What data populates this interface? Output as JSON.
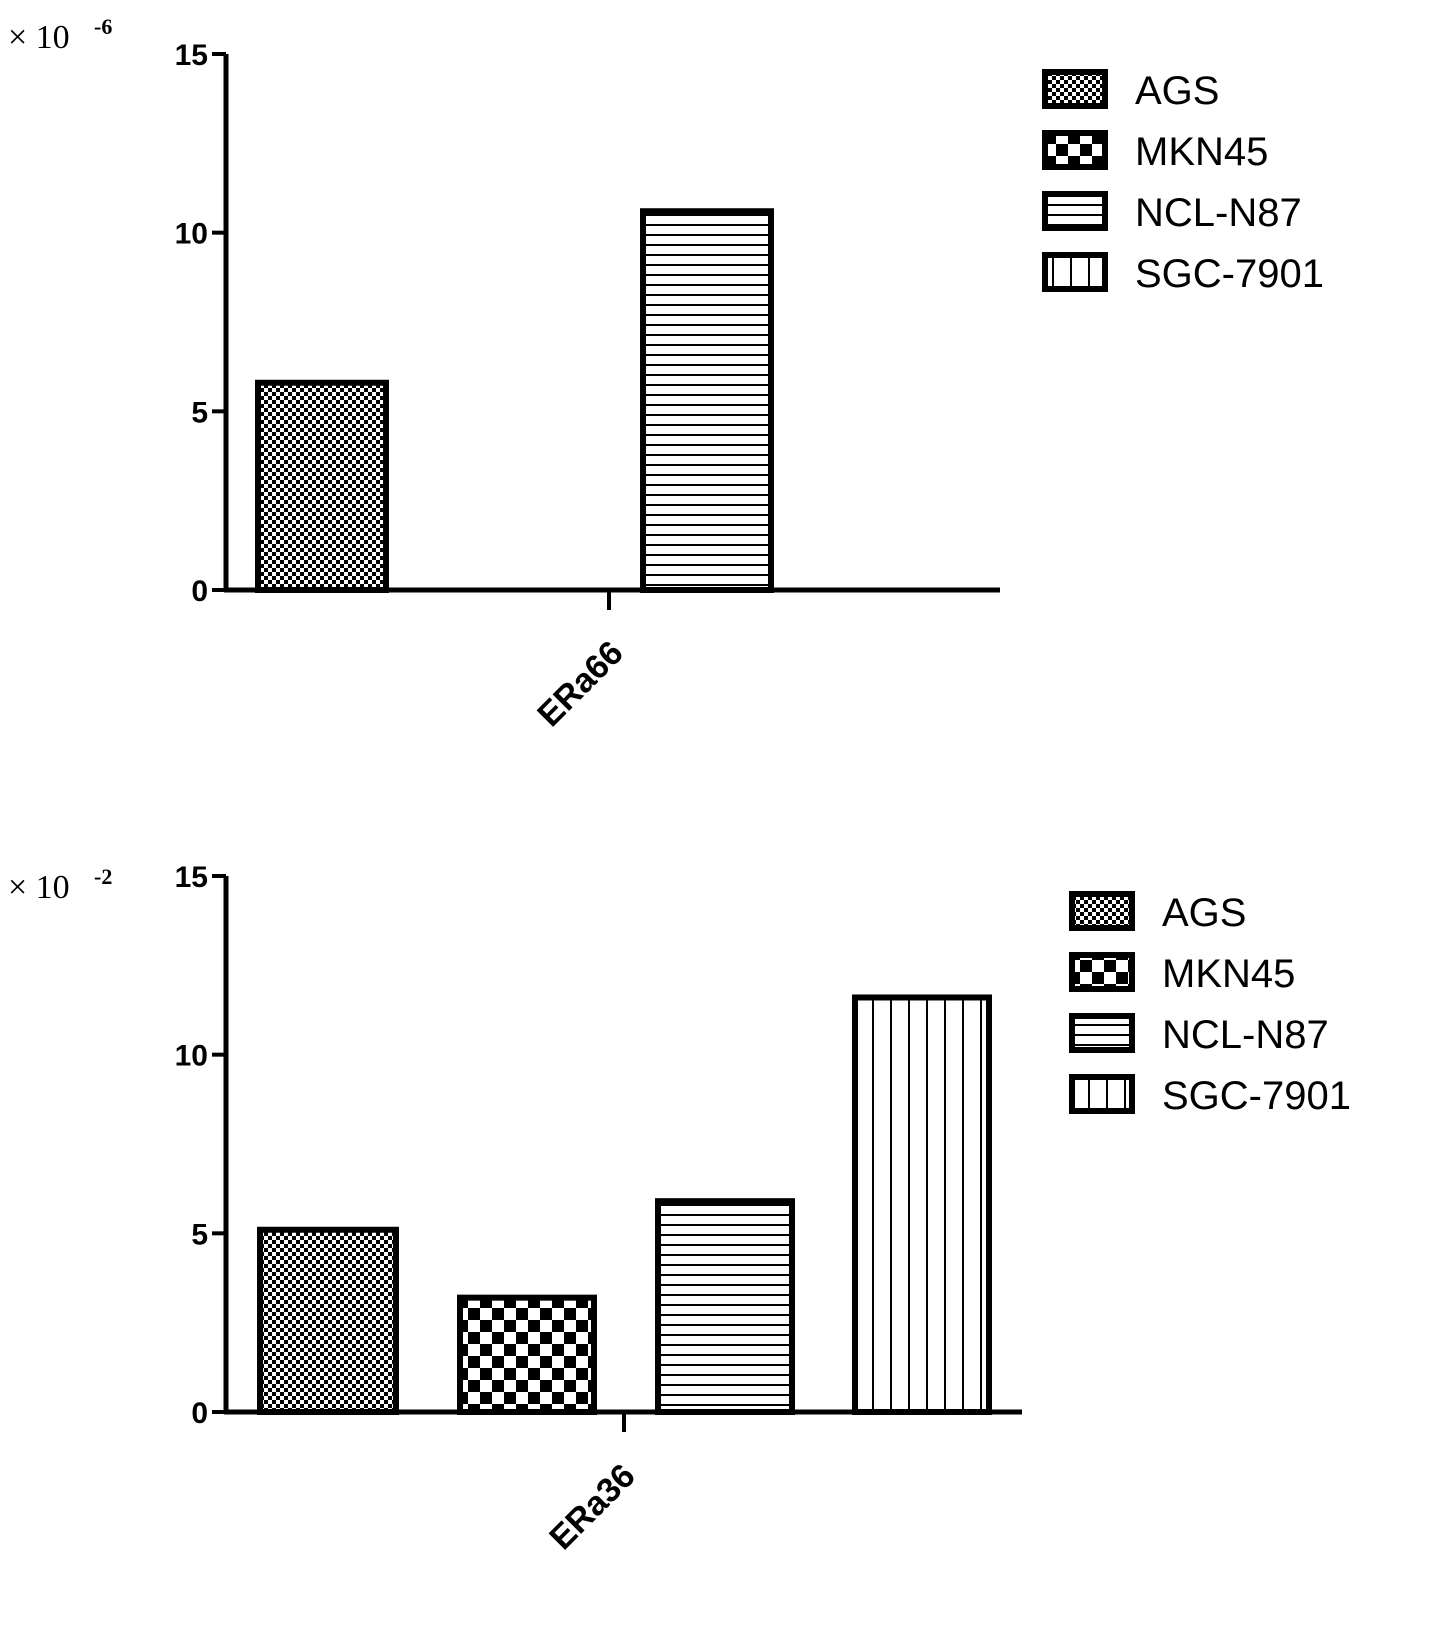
{
  "chart_data": [
    {
      "type": "bar",
      "multiplier": {
        "prefix": "× 10",
        "exponent": "-6"
      },
      "categories": [
        "ERa66"
      ],
      "series": [
        {
          "name": "AGS",
          "values": [
            5.8
          ]
        },
        {
          "name": "MKN45",
          "values": [
            0
          ]
        },
        {
          "name": "NCL-N87",
          "values": [
            10.6
          ]
        },
        {
          "name": "SGC-7901",
          "values": [
            0
          ]
        }
      ],
      "yticks": [
        "0",
        "5",
        "10",
        "15"
      ],
      "ylim": [
        0,
        15
      ],
      "grid": false,
      "legend": "right"
    },
    {
      "type": "bar",
      "multiplier": {
        "prefix": "× 10",
        "exponent": "-2"
      },
      "categories": [
        "ERa36"
      ],
      "series": [
        {
          "name": "AGS",
          "values": [
            5.1
          ]
        },
        {
          "name": "MKN45",
          "values": [
            3.2
          ]
        },
        {
          "name": "NCL-N87",
          "values": [
            5.9
          ]
        },
        {
          "name": "SGC-7901",
          "values": [
            11.6
          ]
        }
      ],
      "yticks": [
        "0",
        "5",
        "10",
        "15"
      ],
      "ylim": [
        0,
        15
      ],
      "grid": false,
      "legend": "right"
    }
  ],
  "colors": {
    "ink": "#000000",
    "background": "#ffffff"
  }
}
